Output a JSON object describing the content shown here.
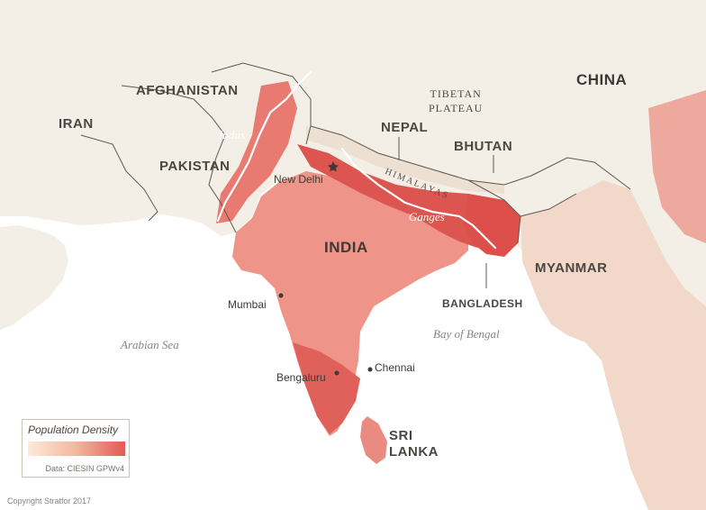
{
  "map": {
    "countries": {
      "afghanistan": "AFGHANISTAN",
      "iran": "IRAN",
      "pakistan": "PAKISTAN",
      "india": "INDIA",
      "nepal": "NEPAL",
      "bhutan": "BHUTAN",
      "china": "CHINA",
      "myanmar": "MYANMAR",
      "bangladesh": "BANGLADESH",
      "sri_lanka_line1": "SRI",
      "sri_lanka_line2": "LANKA"
    },
    "regions": {
      "tibetan_line1": "TIBETAN",
      "tibetan_line2": "PLATEAU",
      "himalayas": "HIMALAYAS"
    },
    "cities": {
      "new_delhi": "New Delhi",
      "mumbai": "Mumbai",
      "bengaluru": "Bengaluru",
      "chennai": "Chennai"
    },
    "rivers": {
      "indus": "Indus",
      "ganges": "Ganges"
    },
    "seas": {
      "arabian": "Arabian Sea",
      "bengal": "Bay of Bengal"
    },
    "colors": {
      "water": "#ffffff",
      "land": "#f4efe6",
      "density_low": "#fcebd9",
      "density_high": "#e05a57"
    }
  },
  "legend": {
    "title": "Population Density",
    "source": "Data: CIESIN GPWv4"
  },
  "footer": {
    "copyright": "Copyright Stratfor 2017"
  }
}
